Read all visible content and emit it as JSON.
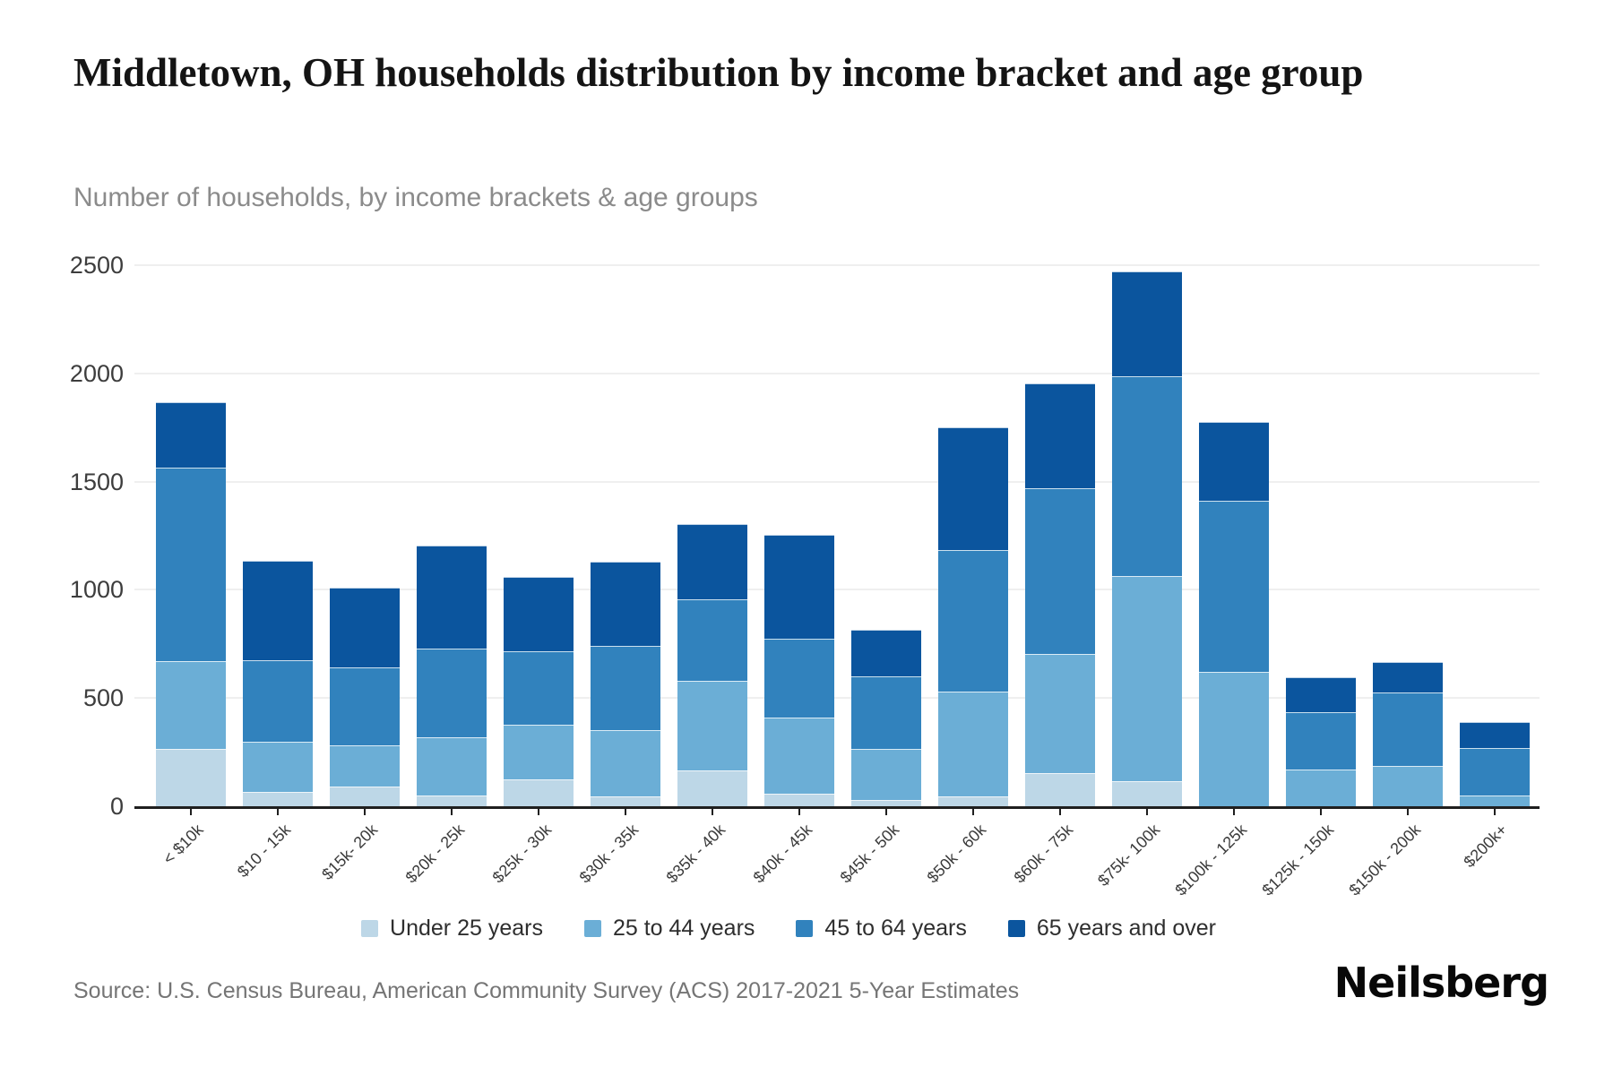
{
  "title": "Middletown, OH households distribution by income bracket and age group",
  "subtitle": "Number of households, by income brackets & age groups",
  "source": "Source: U.S. Census Bureau, American Community Survey (ACS) 2017-2021 5-Year Estimates",
  "logo": "Neilsberg",
  "chart_data": {
    "type": "bar",
    "stacked": true,
    "title": "Middletown, OH households distribution by income bracket and age group",
    "subtitle": "Number of households, by income brackets & age groups",
    "xlabel": "",
    "ylabel": "",
    "ylim": [
      0,
      2500
    ],
    "yticks": [
      0,
      500,
      1000,
      1500,
      2000,
      2500
    ],
    "grid": true,
    "legend_position": "bottom",
    "categories": [
      "< $10k",
      "$10 - 15k",
      "$15k- 20k",
      "$20k - 25k",
      "$25k - 30k",
      "$30k - 35k",
      "$35k - 40k",
      "$40k - 45k",
      "$45k - 50k",
      "$50k - 60k",
      "$60k - 75k",
      "$75k- 100k",
      "$100k - 125k",
      "$125k - 150k",
      "$150k - 200k",
      "$200k+"
    ],
    "series": [
      {
        "name": "Under 25 years",
        "color": "#bdd7e7",
        "values": [
          265,
          65,
          90,
          50,
          125,
          45,
          165,
          60,
          30,
          45,
          155,
          115,
          0,
          0,
          0,
          0
        ]
      },
      {
        "name": "25 to 44 years",
        "color": "#6baed6",
        "values": [
          405,
          235,
          190,
          270,
          250,
          305,
          415,
          350,
          235,
          485,
          550,
          950,
          620,
          170,
          185,
          50
        ]
      },
      {
        "name": "45 to 64 years",
        "color": "#3182bd",
        "values": [
          895,
          375,
          360,
          410,
          340,
          390,
          375,
          365,
          335,
          655,
          765,
          920,
          790,
          265,
          340,
          220
        ]
      },
      {
        "name": "65 years and over",
        "color": "#0b559e",
        "values": [
          300,
          460,
          370,
          475,
          345,
          390,
          350,
          480,
          215,
          565,
          485,
          485,
          365,
          160,
          140,
          120
        ]
      }
    ]
  }
}
